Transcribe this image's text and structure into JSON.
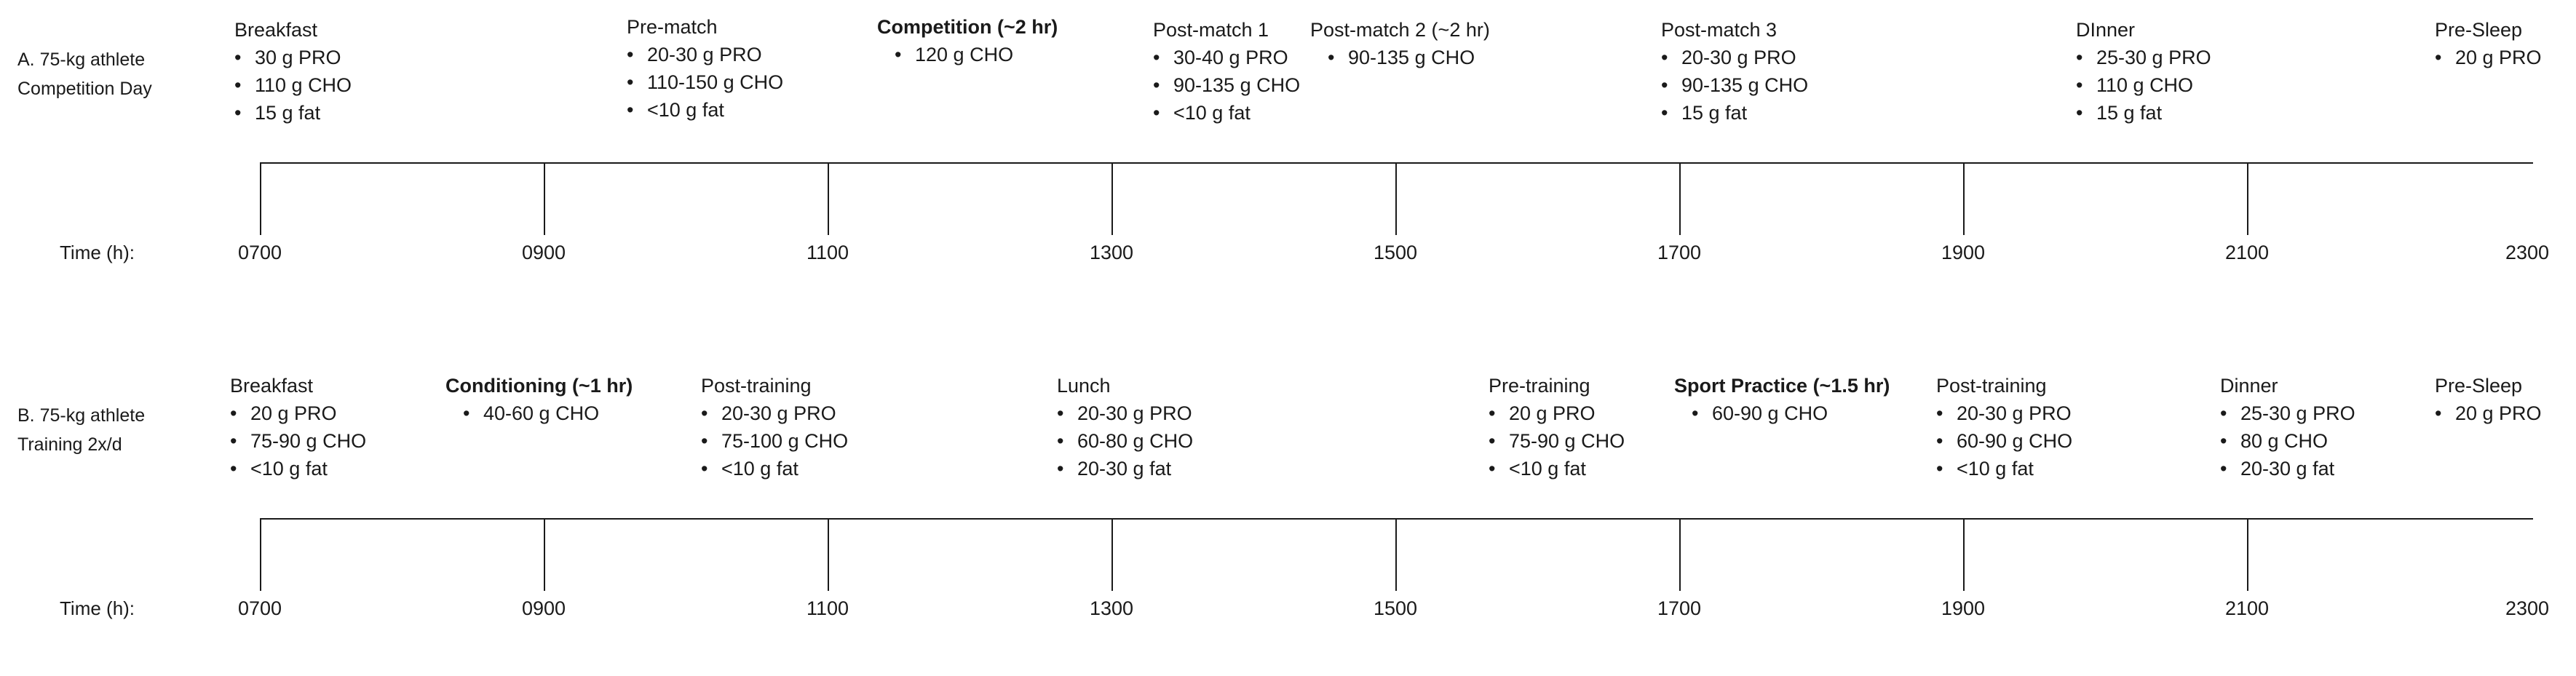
{
  "panel_a": {
    "label_line1": "A. 75-kg athlete",
    "label_line2": "Competition Day",
    "time_label": "Time (h):",
    "ticks": [
      "0700",
      "0900",
      "1100",
      "1300",
      "1500",
      "1700",
      "1900",
      "2100",
      "2300"
    ],
    "meals": [
      {
        "title": "Breakfast",
        "bold": false,
        "items": [
          "30 g PRO",
          "110 g CHO",
          "15 g fat"
        ]
      },
      {
        "title": "Pre-match",
        "bold": false,
        "items": [
          "20-30 g PRO",
          "110-150 g CHO",
          "<10 g fat"
        ]
      },
      {
        "title": "Competition (~2 hr)",
        "bold": true,
        "items": [
          "120 g CHO"
        ]
      },
      {
        "title": "Post-match 1",
        "bold": false,
        "items": [
          "30-40 g PRO",
          "90-135 g CHO",
          "<10 g fat"
        ]
      },
      {
        "title": "Post-match 2 (~2 hr)",
        "bold": false,
        "items": [
          "90-135 g CHO"
        ]
      },
      {
        "title": "Post-match 3",
        "bold": false,
        "items": [
          "20-30 g PRO",
          "90-135 g CHO",
          "15 g fat"
        ]
      },
      {
        "title": "DInner",
        "bold": false,
        "items": [
          "25-30 g PRO",
          "110 g CHO",
          "15 g fat"
        ]
      },
      {
        "title": "Pre-Sleep",
        "bold": false,
        "items": [
          "20 g PRO"
        ]
      }
    ]
  },
  "panel_b": {
    "label_line1": "B. 75-kg athlete",
    "label_line2": "Training 2x/d",
    "time_label": "Time (h):",
    "ticks": [
      "0700",
      "0900",
      "1100",
      "1300",
      "1500",
      "1700",
      "1900",
      "2100",
      "2300"
    ],
    "meals": [
      {
        "title": "Breakfast",
        "bold": false,
        "items": [
          "20 g PRO",
          "75-90 g CHO",
          "<10 g fat"
        ]
      },
      {
        "title": "Conditioning (~1 hr)",
        "bold": true,
        "items": [
          "40-60 g CHO"
        ]
      },
      {
        "title": "Post-training",
        "bold": false,
        "items": [
          "20-30 g PRO",
          "75-100 g CHO",
          "<10 g fat"
        ]
      },
      {
        "title": "Lunch",
        "bold": false,
        "items": [
          "20-30 g PRO",
          "60-80 g CHO",
          "20-30 g fat"
        ]
      },
      {
        "title": "Pre-training",
        "bold": false,
        "items": [
          "20 g PRO",
          "75-90 g CHO",
          "<10 g fat"
        ]
      },
      {
        "title": "Sport Practice (~1.5 hr)",
        "bold": true,
        "items": [
          "60-90 g CHO"
        ]
      },
      {
        "title": "Post-training",
        "bold": false,
        "items": [
          "20-30 g PRO",
          "60-90 g CHO",
          "<10 g fat"
        ]
      },
      {
        "title": "Dinner",
        "bold": false,
        "items": [
          "25-30 g PRO",
          "80 g CHO",
          "20-30 g fat"
        ]
      },
      {
        "title": "Pre-Sleep",
        "bold": false,
        "items": [
          "20 g PRO"
        ]
      }
    ]
  }
}
